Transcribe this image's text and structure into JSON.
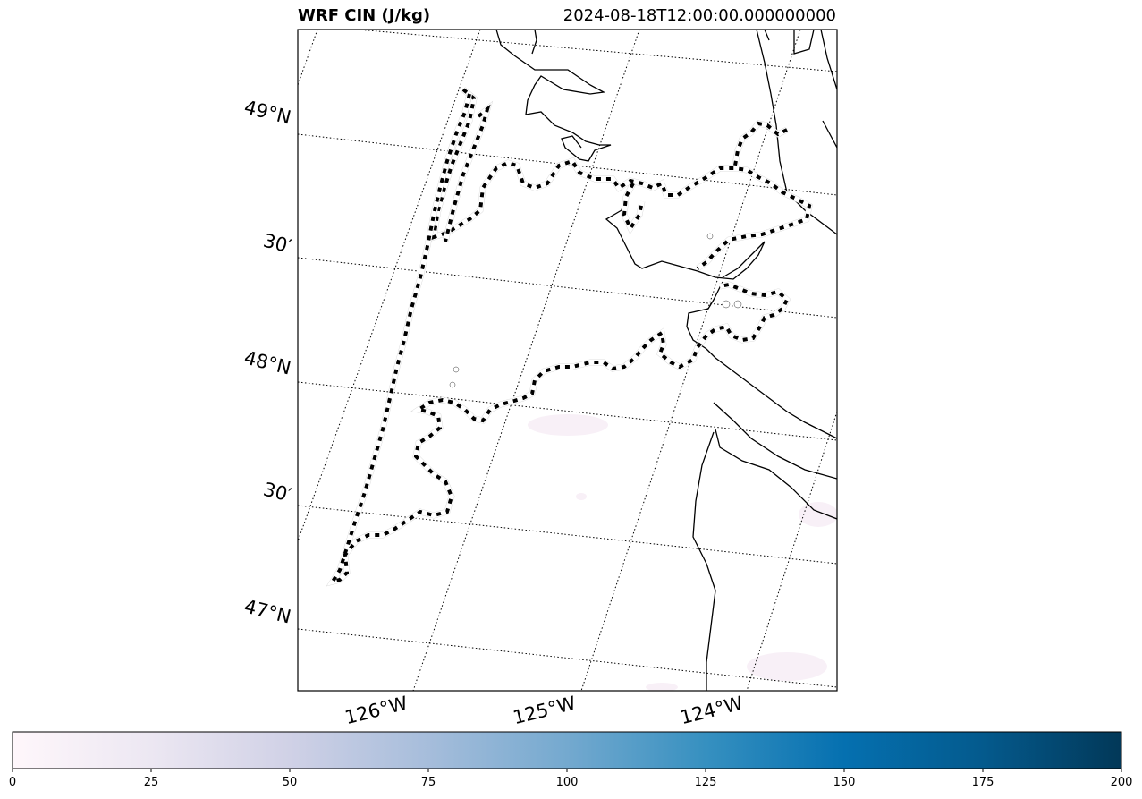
{
  "title": {
    "left": "WRF CIN (J/kg)",
    "right": "2024-08-18T12:00:00.000000000"
  },
  "map": {
    "lat_labels": [
      "49°N",
      "30′",
      "48°N",
      "30′",
      "47°N"
    ],
    "lon_labels": [
      "126°W",
      "125°W",
      "124°W"
    ],
    "gridline_style": "dotted",
    "coastline_color": "#000000",
    "contour_style": "dashed black with white outline"
  },
  "colorbar": {
    "colormap": "PuBu",
    "min": 0,
    "max": 200,
    "ticks": [
      "0",
      "25",
      "50",
      "75",
      "100",
      "125",
      "150",
      "175",
      "200"
    ],
    "color_stops": [
      "#fff7fb",
      "#ece7f2",
      "#d0d1e6",
      "#a6bddb",
      "#74a9cf",
      "#3690c0",
      "#0570b0",
      "#045a8d",
      "#023858"
    ]
  }
}
